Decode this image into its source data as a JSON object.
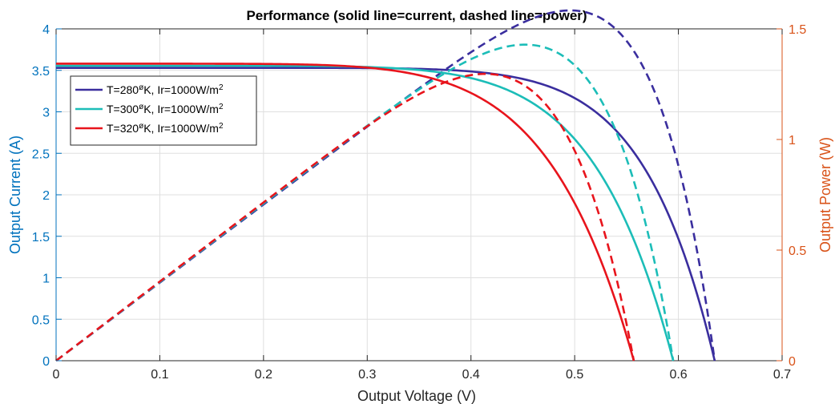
{
  "chart_data": {
    "type": "line",
    "title": "Performance (solid line=current, dashed line=power)",
    "xlabel": "Output Voltage (V)",
    "ylabel_left": "Output Current (A)",
    "ylabel_right": "Output Power (W)",
    "xlim": [
      0,
      0.7
    ],
    "ylim_left": [
      0,
      4
    ],
    "ylim_right": [
      0,
      1.5
    ],
    "x_ticks": [
      "0",
      "0.1",
      "0.2",
      "0.3",
      "0.4",
      "0.5",
      "0.6",
      "0.7"
    ],
    "y_left_ticks": [
      "0",
      "0.5",
      "1",
      "1.5",
      "2",
      "2.5",
      "3",
      "3.5",
      "4"
    ],
    "y_right_ticks": [
      "0",
      "0.5",
      "1",
      "1.5"
    ],
    "grid": true,
    "legend_position": "top-left",
    "axis_colors": {
      "left": "#0072BD",
      "right": "#D95319",
      "x": "#262626"
    },
    "series": [
      {
        "legend": {
          "prefix": "T=280",
          "degree": "ø",
          "mid": "K, Ir=1000W/m",
          "exp": "2"
        },
        "color": "#3A2E9E",
        "isc": 3.53,
        "voc": 0.635,
        "knee_exp": 9.5
      },
      {
        "legend": {
          "prefix": "T=300",
          "degree": "ø",
          "mid": "K, Ir=1000W/m",
          "exp": "2"
        },
        "color": "#1CBDB8",
        "isc": 3.555,
        "voc": 0.595,
        "knee_exp": 8.0
      },
      {
        "legend": {
          "prefix": "T=320",
          "degree": "ø",
          "mid": "K, Ir=1000W/m",
          "exp": "2"
        },
        "color": "#E8141C",
        "isc": 3.58,
        "voc": 0.557,
        "knee_exp": 7.0
      }
    ]
  }
}
